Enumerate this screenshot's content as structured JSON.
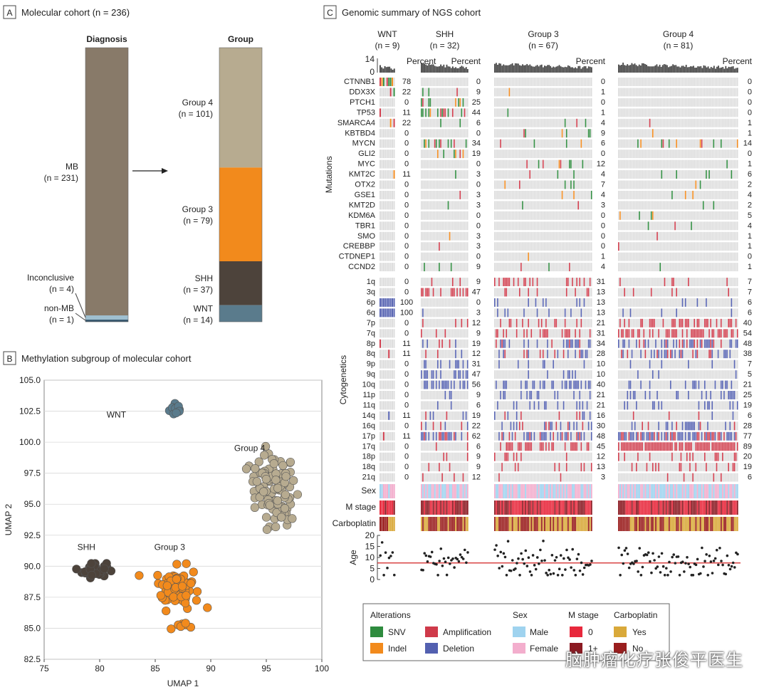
{
  "colors": {
    "panel_letter_bg": "#ffffff",
    "mb": "#887a69",
    "inconclusive": "#9fbfcf",
    "nonmb": "#3b5a70",
    "g4": "#b7ab90",
    "g3": "#f28a1c",
    "shh": "#4d433b",
    "wnt": "#5a7b8c",
    "snv": "#2e8b3e",
    "indel": "#f28a1c",
    "amp": "#cf3a4a",
    "del": "#5360b0",
    "male": "#9fd3ef",
    "female": "#f3aecd",
    "m0": "#e8283c",
    "m1": "#8b1a22",
    "yes": "#d9a93a",
    "no": "#9a1e1e",
    "grey": "#dcdcdc"
  },
  "panel_a": {
    "letter": "A",
    "title": "Molecular cohort (n = 236)",
    "diagnosis_header": "Diagnosis",
    "group_header": "Group",
    "mb_label": "MB",
    "mb_n": "(n = 231)",
    "inconclusive_label": "Inconclusive",
    "inconclusive_n": "(n = 4)",
    "nonmb_label": "non-MB",
    "nonmb_n": "(n = 1)",
    "groups": [
      {
        "name": "Group 4",
        "n": "(n = 101)",
        "count": 101,
        "color": "#b7ab90"
      },
      {
        "name": "Group 3",
        "n": "(n = 79)",
        "count": 79,
        "color": "#f28a1c"
      },
      {
        "name": "SHH",
        "n": "(n = 37)",
        "count": 37,
        "color": "#4d433b"
      },
      {
        "name": "WNT",
        "n": "(n = 14)",
        "count": 14,
        "color": "#5a7b8c"
      }
    ]
  },
  "panel_b": {
    "letter": "B",
    "title": "Methylation subgroup of molecular cohort"
  },
  "panel_c": {
    "letter": "C",
    "title": "Genomic summary of NGS cohort",
    "section_mutations": "Mutations",
    "section_cyto": "Cytogenetics",
    "percent_label": "Percent",
    "row_sex": "Sex",
    "row_mstage": "M stage",
    "row_carbo": "Carboplatin",
    "row_age": "Age",
    "tmb_ticks": [
      "14",
      "0"
    ],
    "age_ticks": [
      "20",
      "15",
      "10",
      "5",
      "0"
    ],
    "groups": [
      {
        "name": "WNT",
        "n": "(n = 9)"
      },
      {
        "name": "SHH",
        "n": "(n = 32)"
      },
      {
        "name": "Group 3",
        "n": "(n = 67)"
      },
      {
        "name": "Group 4",
        "n": "(n = 81)"
      }
    ],
    "legend": {
      "alterations_title": "Alterations",
      "snv": "SNV",
      "indel": "Indel",
      "amp": "Amplification",
      "del": "Deletion",
      "sex_title": "Sex",
      "male": "Male",
      "female": "Female",
      "mstage_title": "M stage",
      "m0": "0",
      "m1": "1+",
      "carbo_title": "Carboplatin",
      "yes": "Yes",
      "no": "No"
    }
  },
  "watermark": "脑肿瘤化疗张俊平医生",
  "chart_data": [
    {
      "type": "bar",
      "title": "Molecular cohort (n = 236)",
      "categories": [
        "MB",
        "Inconclusive",
        "non-MB"
      ],
      "values": [
        231,
        4,
        1
      ],
      "subgroups": {
        "categories": [
          "Group 4",
          "Group 3",
          "SHH",
          "WNT"
        ],
        "values": [
          101,
          79,
          37,
          14
        ]
      }
    },
    {
      "type": "scatter",
      "title": "Methylation subgroup of molecular cohort",
      "xlabel": "UMAP 1",
      "ylabel": "UMAP 2",
      "xlim": [
        75,
        100
      ],
      "ylim": [
        82.5,
        105
      ],
      "xticks": [
        75,
        80,
        85,
        90,
        95,
        100
      ],
      "yticks": [
        82.5,
        85.0,
        87.5,
        90.0,
        92.5,
        95.0,
        97.5,
        100.0,
        102.5,
        105.0
      ],
      "cluster_labels": [
        {
          "text": "WNT",
          "x": 81.5,
          "y": 102
        },
        {
          "text": "Group 4",
          "x": 93.5,
          "y": 99.3
        },
        {
          "text": "SHH",
          "x": 78.8,
          "y": 91.3
        },
        {
          "text": "Group 3",
          "x": 86.3,
          "y": 91.3
        }
      ],
      "series": [
        {
          "name": "WNT",
          "color": "#5a7b8c",
          "center": [
            86.9,
            102.7
          ],
          "spread": [
            0.55,
            0.55
          ],
          "n": 14
        },
        {
          "name": "Group 4",
          "color": "#b7ab90",
          "center": [
            95.6,
            96.5
          ],
          "spread": [
            1.9,
            2.3
          ],
          "n": 101
        },
        {
          "name": "Group 3",
          "color": "#f28a1c",
          "center": [
            87.0,
            88.3
          ],
          "spread": [
            1.8,
            1.5
          ],
          "n": 79
        },
        {
          "name": "SHH",
          "color": "#4d433b",
          "center": [
            79.5,
            89.7
          ],
          "spread": [
            1.0,
            0.55
          ],
          "n": 37
        }
      ]
    },
    {
      "type": "heatmap",
      "title": "Genomic summary of NGS cohort",
      "groups": [
        "WNT",
        "SHH",
        "Group 3",
        "Group 4"
      ],
      "group_n": [
        9,
        32,
        67,
        81
      ],
      "mutations": [
        {
          "gene": "CTNNB1",
          "pct": [
            78,
            0,
            0,
            0
          ]
        },
        {
          "gene": "DDX3X",
          "pct": [
            22,
            9,
            1,
            0
          ]
        },
        {
          "gene": "PTCH1",
          "pct": [
            0,
            25,
            0,
            0
          ]
        },
        {
          "gene": "TP53",
          "pct": [
            11,
            44,
            1,
            0
          ]
        },
        {
          "gene": "SMARCA4",
          "pct": [
            22,
            6,
            4,
            1
          ]
        },
        {
          "gene": "KBTBD4",
          "pct": [
            0,
            0,
            9,
            1
          ]
        },
        {
          "gene": "MYCN",
          "pct": [
            0,
            34,
            6,
            14
          ]
        },
        {
          "gene": "GLI2",
          "pct": [
            0,
            19,
            0,
            0
          ]
        },
        {
          "gene": "MYC",
          "pct": [
            0,
            0,
            12,
            1
          ]
        },
        {
          "gene": "KMT2C",
          "pct": [
            11,
            3,
            4,
            6
          ]
        },
        {
          "gene": "OTX2",
          "pct": [
            0,
            0,
            7,
            2
          ]
        },
        {
          "gene": "GSE1",
          "pct": [
            0,
            3,
            4,
            4
          ]
        },
        {
          "gene": "KMT2D",
          "pct": [
            0,
            3,
            3,
            2
          ]
        },
        {
          "gene": "KDM6A",
          "pct": [
            0,
            0,
            0,
            5
          ]
        },
        {
          "gene": "TBR1",
          "pct": [
            0,
            0,
            0,
            4
          ]
        },
        {
          "gene": "SMO",
          "pct": [
            0,
            3,
            0,
            1
          ]
        },
        {
          "gene": "CREBBP",
          "pct": [
            0,
            3,
            0,
            1
          ]
        },
        {
          "gene": "CTDNEP1",
          "pct": [
            0,
            0,
            1,
            0
          ]
        },
        {
          "gene": "CCND2",
          "pct": [
            0,
            9,
            4,
            1
          ]
        }
      ],
      "cytogenetics": [
        {
          "arm": "1q",
          "pct": [
            0,
            9,
            31,
            7
          ]
        },
        {
          "arm": "3q",
          "pct": [
            0,
            47,
            13,
            7
          ]
        },
        {
          "arm": "6p",
          "pct": [
            100,
            0,
            13,
            6
          ]
        },
        {
          "arm": "6q",
          "pct": [
            100,
            3,
            13,
            6
          ]
        },
        {
          "arm": "7p",
          "pct": [
            0,
            12,
            21,
            40
          ]
        },
        {
          "arm": "7q",
          "pct": [
            0,
            9,
            31,
            54
          ]
        },
        {
          "arm": "8p",
          "pct": [
            11,
            19,
            34,
            48
          ]
        },
        {
          "arm": "8q",
          "pct": [
            11,
            12,
            28,
            38
          ]
        },
        {
          "arm": "9p",
          "pct": [
            0,
            31,
            10,
            7
          ]
        },
        {
          "arm": "9q",
          "pct": [
            0,
            47,
            10,
            5
          ]
        },
        {
          "arm": "10q",
          "pct": [
            0,
            56,
            40,
            21
          ]
        },
        {
          "arm": "11p",
          "pct": [
            0,
            9,
            21,
            25
          ]
        },
        {
          "arm": "11q",
          "pct": [
            0,
            6,
            21,
            19
          ]
        },
        {
          "arm": "14q",
          "pct": [
            11,
            19,
            16,
            6
          ]
        },
        {
          "arm": "16q",
          "pct": [
            0,
            22,
            30,
            28
          ]
        },
        {
          "arm": "17p",
          "pct": [
            11,
            62,
            48,
            77
          ]
        },
        {
          "arm": "17q",
          "pct": [
            0,
            6,
            45,
            89
          ]
        },
        {
          "arm": "18p",
          "pct": [
            0,
            9,
            12,
            20
          ]
        },
        {
          "arm": "18q",
          "pct": [
            0,
            9,
            13,
            19
          ]
        },
        {
          "arm": "21q",
          "pct": [
            0,
            12,
            3,
            6
          ]
        }
      ],
      "tmb_ylim": [
        0,
        14
      ],
      "age_ylim": [
        0,
        20
      ],
      "age_reference_line": 7.5
    }
  ]
}
